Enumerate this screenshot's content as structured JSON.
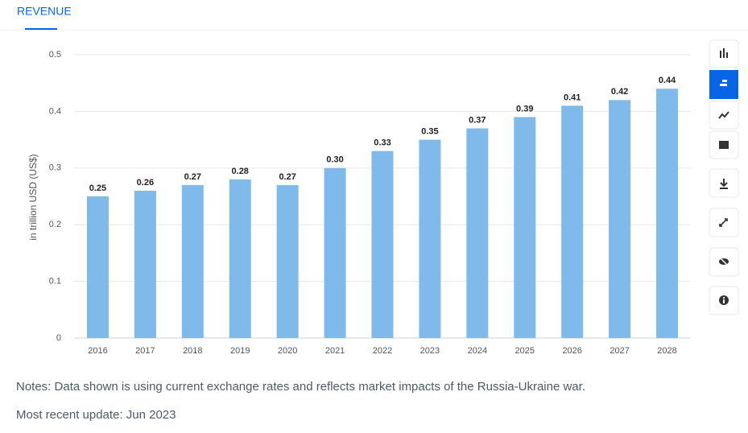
{
  "tab": "REVENUE",
  "chart_data": {
    "type": "bar",
    "ylabel": "in trillion USD (US$)",
    "categories": [
      "2016",
      "2017",
      "2018",
      "2019",
      "2020",
      "2021",
      "2022",
      "2023",
      "2024",
      "2025",
      "2026",
      "2027",
      "2028"
    ],
    "values": [
      0.25,
      0.26,
      0.27,
      0.28,
      0.27,
      0.3,
      0.33,
      0.35,
      0.37,
      0.39,
      0.41,
      0.42,
      0.44
    ],
    "value_labels": [
      "0.25",
      "0.26",
      "0.27",
      "0.28",
      "0.27",
      "0.30",
      "0.33",
      "0.35",
      "0.37",
      "0.39",
      "0.41",
      "0.42",
      "0.44"
    ],
    "color": "#7fbaea",
    "ylim": [
      0,
      0.5
    ],
    "yticks": [
      0,
      0.1,
      0.2,
      0.3,
      0.4,
      0.5
    ],
    "grid": true
  },
  "notes": "Notes: Data shown is using current exchange rates and reflects market impacts of the Russia-Ukraine war.",
  "update": "Most recent update: Jun 2023"
}
